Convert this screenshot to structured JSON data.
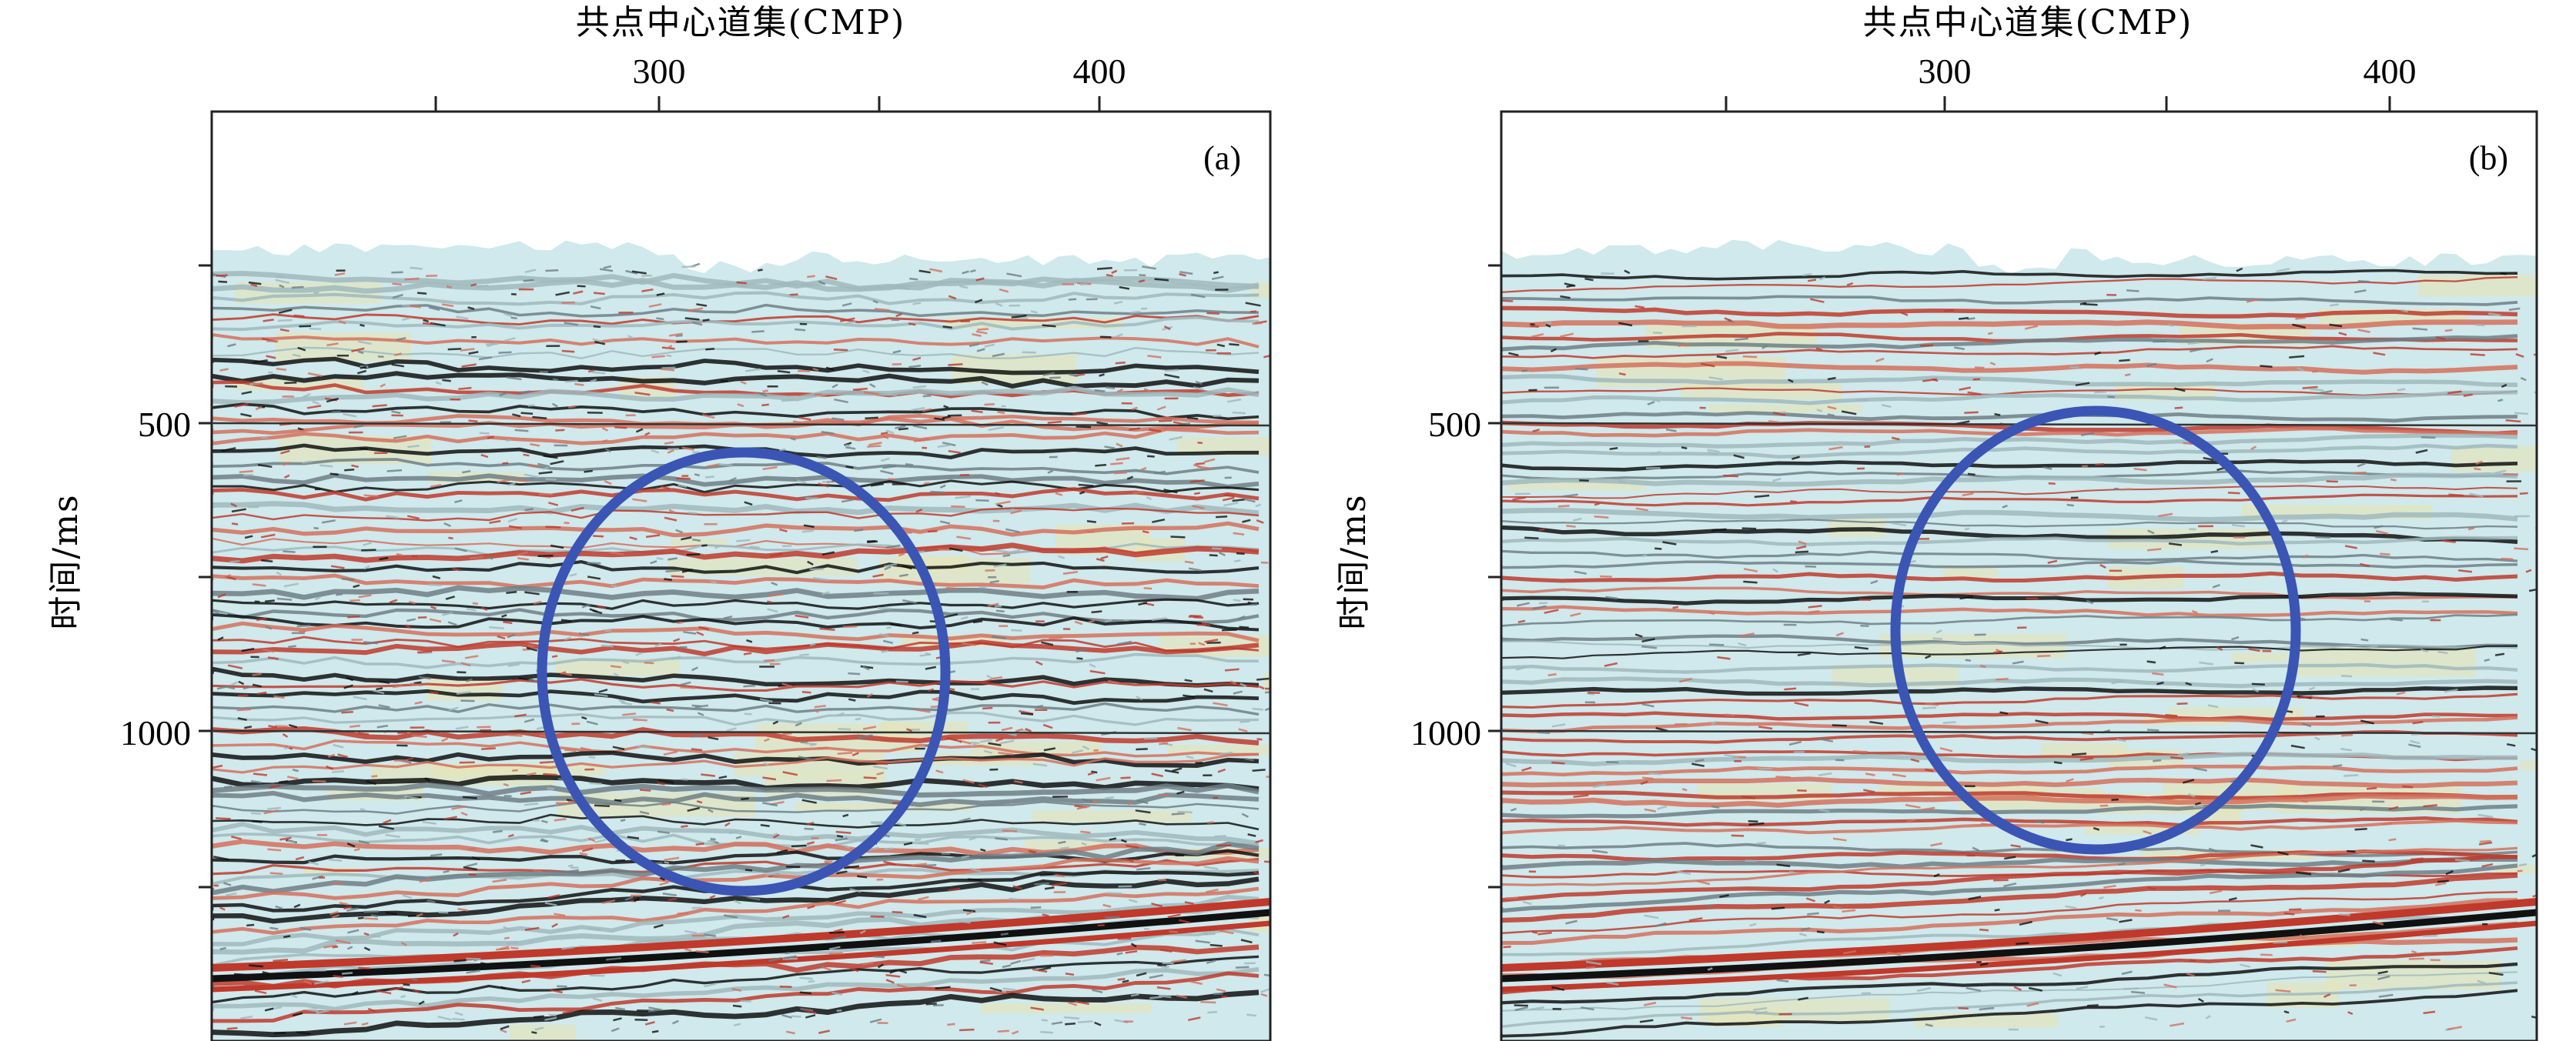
{
  "figure": {
    "x_axis_title": "共点中心道集(CMP)",
    "y_axis_title": "时间/ms",
    "x_ticks": [
      "300",
      "400"
    ],
    "y_ticks": [
      "500",
      "1000"
    ],
    "panels": [
      {
        "label": "(a)",
        "noise": 1.0
      },
      {
        "label": "(b)",
        "noise": 0.35
      }
    ],
    "colors": {
      "red_event": "#c0392b",
      "black_event": "#111111",
      "grey_event": "#6e7f86",
      "cyan_background": "#cfe9ec",
      "yellow_background": "#e6e4b5",
      "circle": "#3a55b4",
      "frame": "#222222"
    }
  }
}
